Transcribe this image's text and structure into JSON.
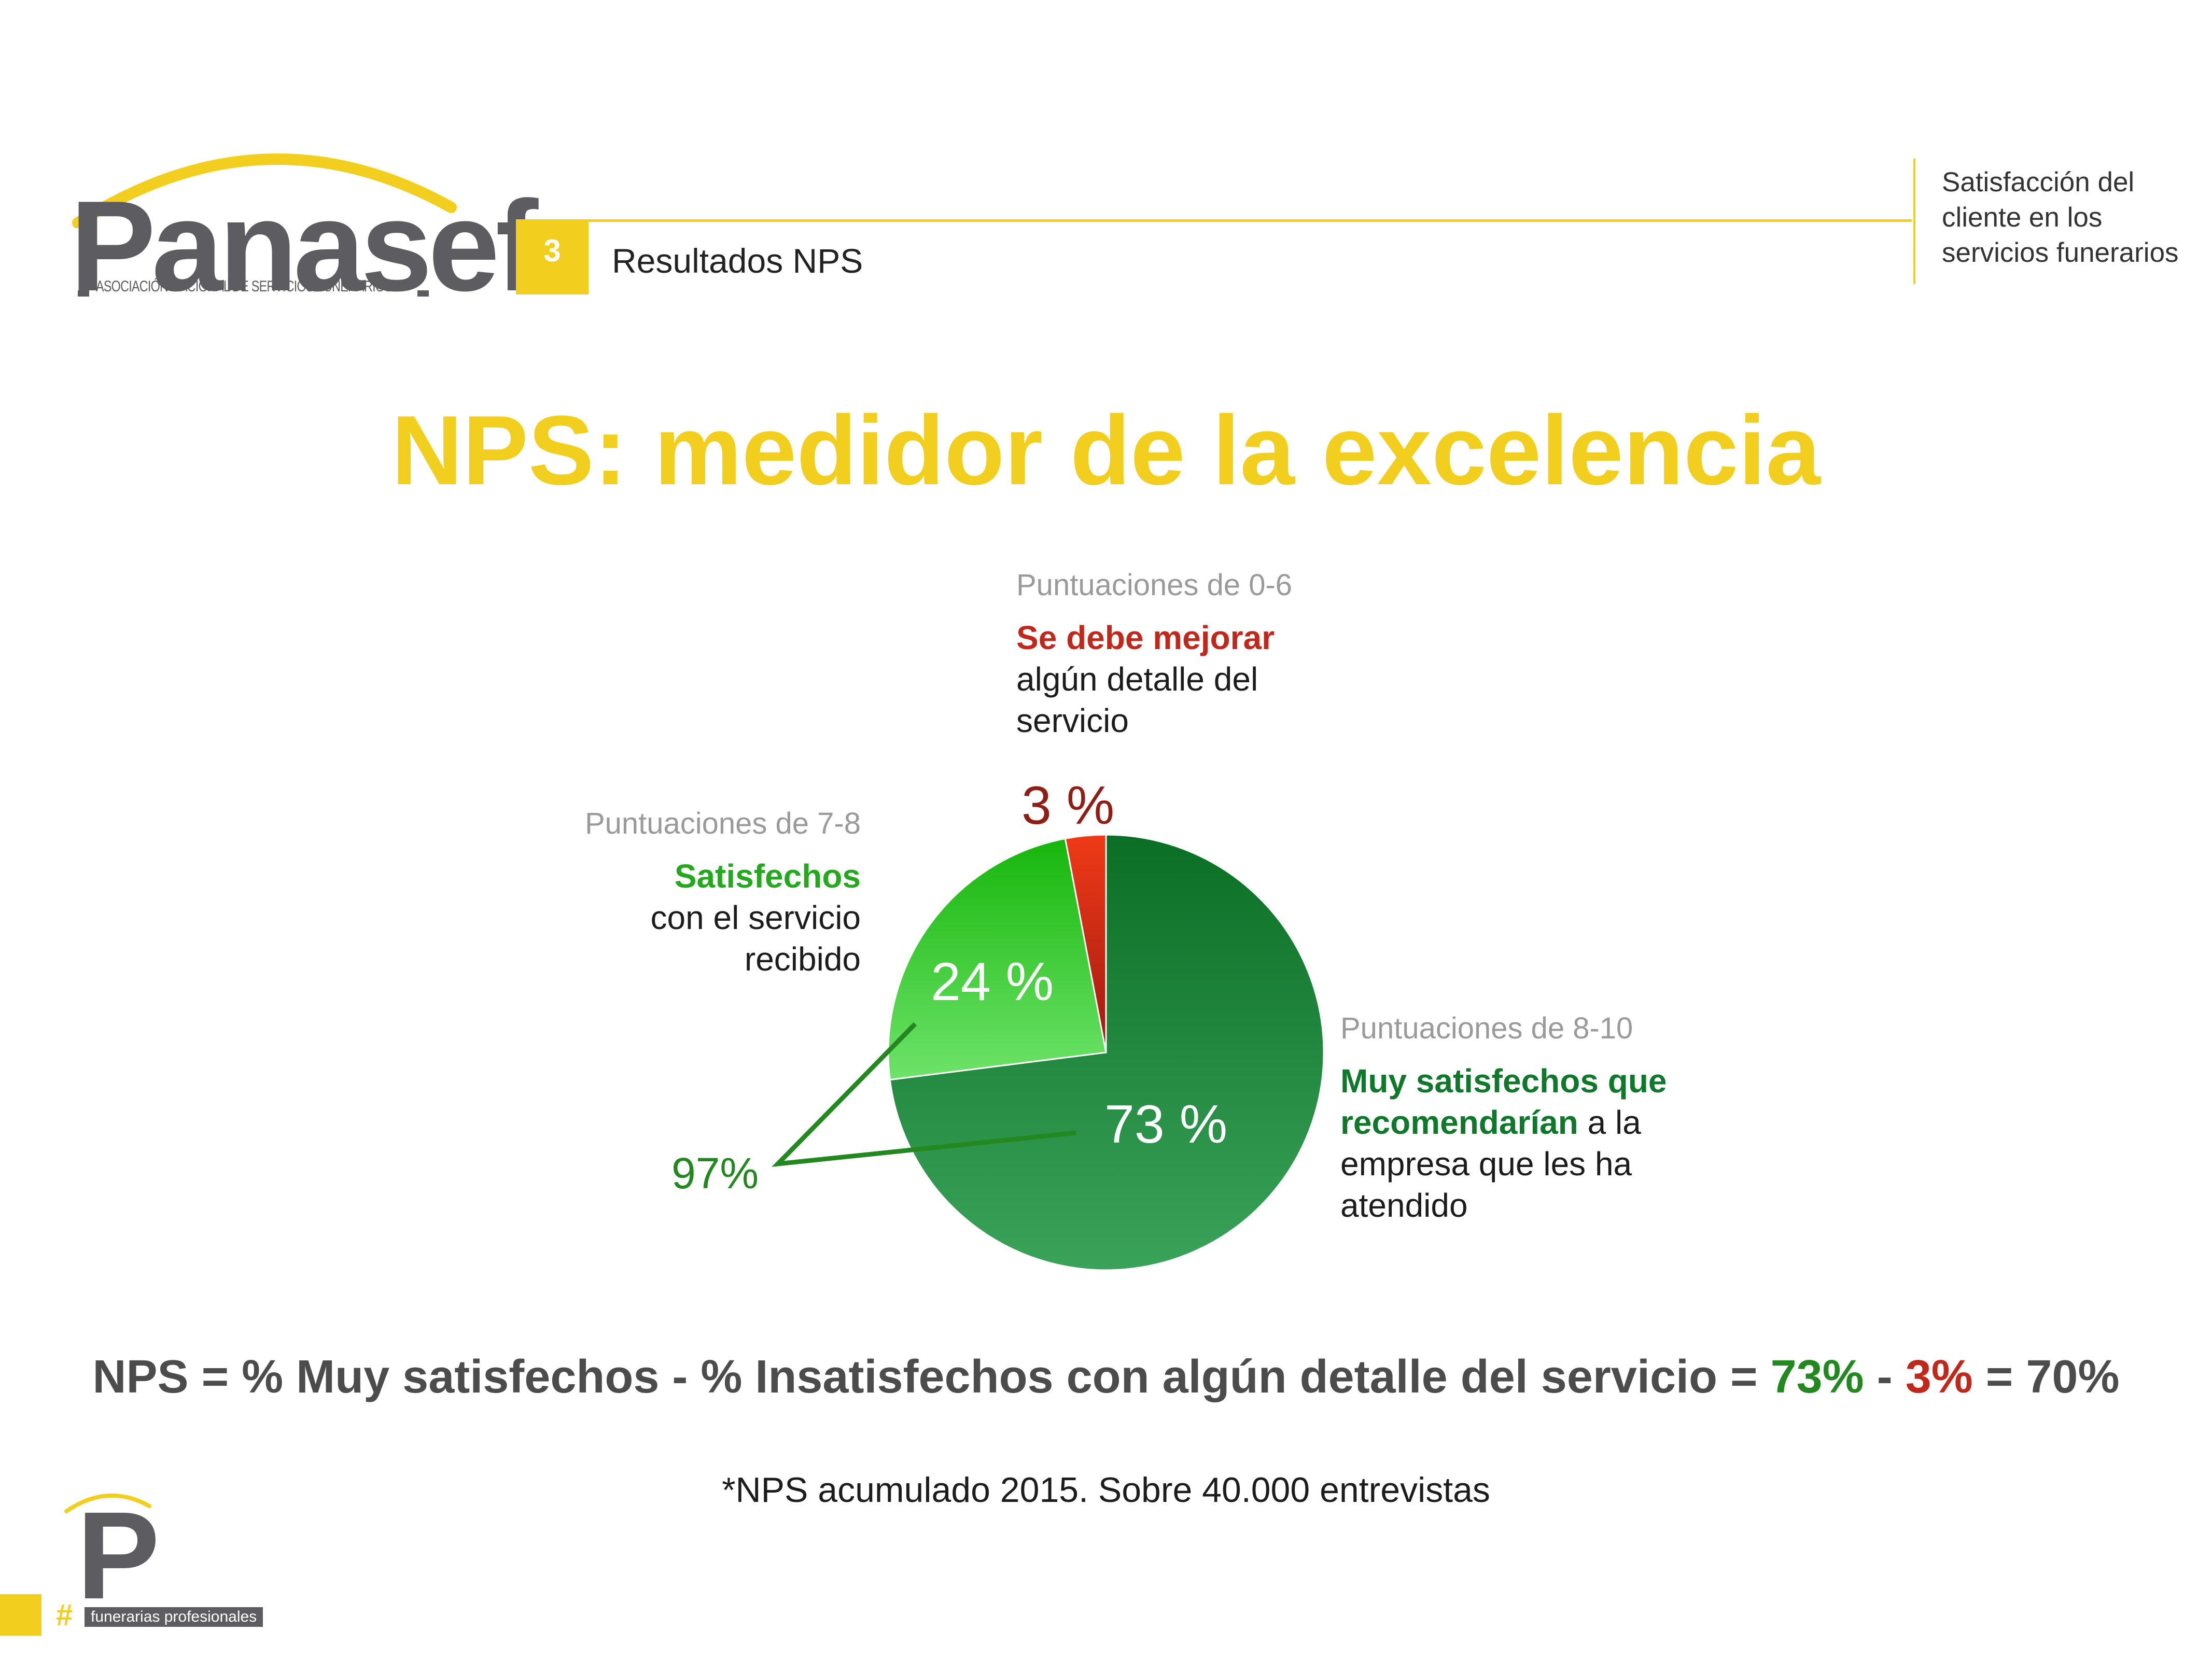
{
  "brand": {
    "logo_word": "Panasef",
    "logo_subtitle": "ASOCIACIÓN NACIONAL DE SERVICIOS FUNERARIOS",
    "footer_logo_letter": "P",
    "footer_hash": "#",
    "footer_tag": "funerarias profesionales",
    "color_yellow": "#f2cf1e",
    "color_gray": "#5d5d61"
  },
  "header": {
    "section_number": "3",
    "section_title": "Resultados NPS",
    "top_right_lines": [
      "Satisfacción del",
      "cliente en los",
      "servicios funerarios"
    ]
  },
  "title": "NPS: medidor de la excelencia",
  "chart_data": {
    "type": "pie",
    "title": "",
    "slices": [
      {
        "range": "Puntuaciones de 8-10",
        "value": 73,
        "label": "73 %",
        "highlight": "Muy satisfechos que recomendarían",
        "rest": [
          " a la",
          "empresa que les ha",
          "atendido"
        ],
        "color": "#22883a"
      },
      {
        "range": "Puntuaciones de 7-8",
        "value": 24,
        "label": "24 %",
        "highlight": "Satisfechos",
        "rest": [
          "con el servicio",
          "recibido"
        ],
        "color": "#3fc940"
      },
      {
        "range": "Puntuaciones de 0-6",
        "value": 3,
        "label": "3 %",
        "highlight": "Se debe mejorar",
        "rest": [
          "algún detalle del",
          "servicio"
        ],
        "color": "#d12a14"
      }
    ],
    "combined_label": "97%"
  },
  "formula": {
    "text": "NPS = % Muy satisfechos - % Insatisfechos con algún detalle del servicio = ",
    "positive": "73%",
    "minus": " - ",
    "negative": "3%",
    "result": " = 70%"
  },
  "footnote": "*NPS acumulado 2015. Sobre 40.000 entrevistas"
}
